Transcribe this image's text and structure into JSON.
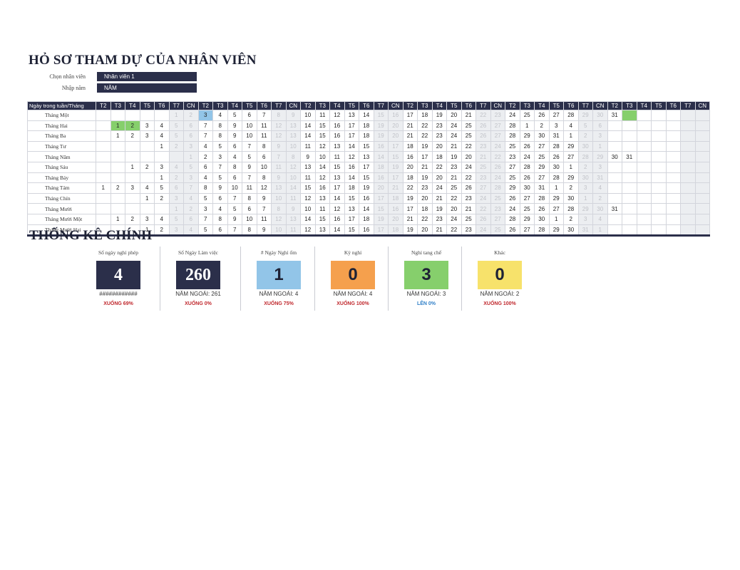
{
  "title": "HỎ SƠ THAM DỰ CỦA NHÂN VIÊN",
  "selectors": [
    {
      "label": "Chọn nhân viên",
      "value": "Nhân viên 1"
    },
    {
      "label": "Nhập năm",
      "value": "NĂM"
    }
  ],
  "grid": {
    "corner": "Ngày trong tuần/Tháng",
    "weekdays": [
      "T2",
      "T3",
      "T4",
      "T5",
      "T6",
      "T7",
      "CN",
      "T2",
      "T3",
      "T4",
      "T5",
      "T6",
      "T7",
      "CN",
      "T2",
      "T3",
      "T4",
      "T5",
      "T6",
      "T7",
      "CN",
      "T2",
      "T3",
      "T4",
      "T5",
      "T6",
      "T7",
      "CN",
      "T2",
      "T3",
      "T4",
      "T5",
      "T6",
      "T7",
      "CN",
      "T2",
      "T3",
      "T4",
      "T5",
      "T6",
      "T7",
      "CN"
    ],
    "months": [
      {
        "name": "Tháng Một",
        "days": [
          "",
          "",
          "",
          "",
          "",
          "1",
          "2",
          "3",
          "4",
          "5",
          "6",
          "7",
          "8",
          "9",
          "10",
          "11",
          "12",
          "13",
          "14",
          "15",
          "16",
          "17",
          "18",
          "19",
          "20",
          "21",
          "22",
          "23",
          "24",
          "25",
          "26",
          "27",
          "28",
          "29",
          "30",
          "31",
          "",
          "",
          "",
          "",
          "",
          ""
        ],
        "marks": {
          "7": "blue",
          "36": "green"
        }
      },
      {
        "name": "Tháng Hai",
        "days": [
          "",
          "1",
          "2",
          "3",
          "4",
          "5",
          "6",
          "7",
          "8",
          "9",
          "10",
          "11",
          "12",
          "13",
          "14",
          "15",
          "16",
          "17",
          "18",
          "19",
          "20",
          "21",
          "22",
          "23",
          "24",
          "25",
          "26",
          "27",
          "28",
          "1",
          "2",
          "3",
          "4",
          "5",
          "6",
          "",
          "",
          "",
          "",
          "",
          "",
          ""
        ],
        "marks": {
          "1": "green",
          "2": "green"
        }
      },
      {
        "name": "Tháng Ba",
        "days": [
          "",
          "1",
          "2",
          "3",
          "4",
          "5",
          "6",
          "7",
          "8",
          "9",
          "10",
          "11",
          "12",
          "13",
          "14",
          "15",
          "16",
          "17",
          "18",
          "19",
          "20",
          "21",
          "22",
          "23",
          "24",
          "25",
          "26",
          "27",
          "28",
          "29",
          "30",
          "31",
          "1",
          "2",
          "3",
          "",
          "",
          "",
          "",
          "",
          "",
          ""
        ]
      },
      {
        "name": "Tháng Tư",
        "days": [
          "",
          "",
          "",
          "",
          "1",
          "2",
          "3",
          "4",
          "5",
          "6",
          "7",
          "8",
          "9",
          "10",
          "11",
          "12",
          "13",
          "14",
          "15",
          "16",
          "17",
          "18",
          "19",
          "20",
          "21",
          "22",
          "23",
          "24",
          "25",
          "26",
          "27",
          "28",
          "29",
          "30",
          "1",
          "",
          "",
          "",
          "",
          "",
          "",
          ""
        ]
      },
      {
        "name": "Tháng Năm",
        "days": [
          "",
          "",
          "",
          "",
          "",
          "",
          "1",
          "2",
          "3",
          "4",
          "5",
          "6",
          "7",
          "8",
          "9",
          "10",
          "11",
          "12",
          "13",
          "14",
          "15",
          "16",
          "17",
          "18",
          "19",
          "20",
          "21",
          "22",
          "23",
          "24",
          "25",
          "26",
          "27",
          "28",
          "29",
          "30",
          "31",
          "",
          "",
          "",
          "",
          ""
        ]
      },
      {
        "name": "Tháng Sáu",
        "days": [
          "",
          "",
          "1",
          "2",
          "3",
          "4",
          "5",
          "6",
          "7",
          "8",
          "9",
          "10",
          "11",
          "12",
          "13",
          "14",
          "15",
          "16",
          "17",
          "18",
          "19",
          "20",
          "21",
          "22",
          "23",
          "24",
          "25",
          "26",
          "27",
          "28",
          "29",
          "30",
          "1",
          "2",
          "3",
          "",
          "",
          "",
          "",
          "",
          "",
          ""
        ]
      },
      {
        "name": "Tháng Bảy",
        "days": [
          "",
          "",
          "",
          "",
          "1",
          "2",
          "3",
          "4",
          "5",
          "6",
          "7",
          "8",
          "9",
          "10",
          "11",
          "12",
          "13",
          "14",
          "15",
          "16",
          "17",
          "18",
          "19",
          "20",
          "21",
          "22",
          "23",
          "24",
          "25",
          "26",
          "27",
          "28",
          "29",
          "30",
          "31",
          "",
          "",
          "",
          "",
          "",
          "",
          ""
        ]
      },
      {
        "name": "Tháng Tám",
        "days": [
          "1",
          "2",
          "3",
          "4",
          "5",
          "6",
          "7",
          "8",
          "9",
          "10",
          "11",
          "12",
          "13",
          "14",
          "15",
          "16",
          "17",
          "18",
          "19",
          "20",
          "21",
          "22",
          "23",
          "24",
          "25",
          "26",
          "27",
          "28",
          "29",
          "30",
          "31",
          "1",
          "2",
          "3",
          "4",
          "",
          "",
          "",
          "",
          "",
          "",
          ""
        ]
      },
      {
        "name": "Tháng Chín",
        "days": [
          "",
          "",
          "",
          "1",
          "2",
          "3",
          "4",
          "5",
          "6",
          "7",
          "8",
          "9",
          "10",
          "11",
          "12",
          "13",
          "14",
          "15",
          "16",
          "17",
          "18",
          "19",
          "20",
          "21",
          "22",
          "23",
          "24",
          "25",
          "26",
          "27",
          "28",
          "29",
          "30",
          "1",
          "2",
          "",
          "",
          "",
          "",
          "",
          "",
          ""
        ]
      },
      {
        "name": "Tháng Mười",
        "days": [
          "",
          "",
          "",
          "",
          "",
          "1",
          "2",
          "3",
          "4",
          "5",
          "6",
          "7",
          "8",
          "9",
          "10",
          "11",
          "12",
          "13",
          "14",
          "15",
          "16",
          "17",
          "18",
          "19",
          "20",
          "21",
          "22",
          "23",
          "24",
          "25",
          "26",
          "27",
          "28",
          "29",
          "30",
          "31",
          "",
          "",
          "",
          "",
          "",
          ""
        ]
      },
      {
        "name": "Tháng Mười Một",
        "days": [
          "",
          "1",
          "2",
          "3",
          "4",
          "5",
          "6",
          "7",
          "8",
          "9",
          "10",
          "11",
          "12",
          "13",
          "14",
          "15",
          "16",
          "17",
          "18",
          "19",
          "20",
          "21",
          "22",
          "23",
          "24",
          "25",
          "26",
          "27",
          "28",
          "29",
          "30",
          "1",
          "2",
          "3",
          "4",
          "",
          "",
          "",
          "",
          "",
          "",
          ""
        ]
      },
      {
        "name": "Tháng Mười Hai",
        "days": [
          "",
          "",
          "",
          "1",
          "2",
          "3",
          "4",
          "5",
          "6",
          "7",
          "8",
          "9",
          "10",
          "11",
          "12",
          "13",
          "14",
          "15",
          "16",
          "17",
          "18",
          "19",
          "20",
          "21",
          "22",
          "23",
          "24",
          "25",
          "26",
          "27",
          "28",
          "29",
          "30",
          "31",
          "1",
          "",
          "",
          "",
          "",
          "",
          "",
          ""
        ]
      }
    ],
    "colors": {
      "header": "#2b2f4a",
      "weekend_bg": "#eceef1",
      "weekend_text": "#c0c2c8",
      "mark_blue": "#92c5e8",
      "mark_green": "#86cf6c"
    }
  },
  "stats": {
    "title": "THỐNG KÊ CHÍNH",
    "cards": [
      {
        "label": "Số ngày nghỉ phép",
        "value": "4",
        "prev": "############",
        "change": "XUỐNG 69%",
        "bg": "#2b2f4a",
        "fg": "#ffffff",
        "change_color": "#c0282d"
      },
      {
        "label": "Số Ngày Làm việc",
        "value": "260",
        "prev": "NĂM NGOÁI: 261",
        "change": "XUỐNG 0%",
        "bg": "#2b2f4a",
        "fg": "#ffffff",
        "change_color": "#c0282d"
      },
      {
        "label": "# Ngày Nghỉ ốm",
        "value": "1",
        "prev": "NĂM NGOÁI: 4",
        "change": "XUỐNG 75%",
        "bg": "#92c5e8",
        "fg": "#1e2235",
        "change_color": "#c0282d"
      },
      {
        "label": "Kỳ nghỉ",
        "value": "0",
        "prev": "NĂM NGOÁI: 4",
        "change": "XUỐNG 100%",
        "bg": "#f5a04d",
        "fg": "#1e2235",
        "change_color": "#c0282d"
      },
      {
        "label": "Nghỉ tang chế",
        "value": "3",
        "prev": "NĂM NGOÁI: 3",
        "change": "LÊN 0%",
        "bg": "#86cf6c",
        "fg": "#1e2235",
        "change_color": "#2f7fc7"
      },
      {
        "label": "Khác",
        "value": "0",
        "prev": "NĂM NGOÁI: 2",
        "change": "XUỐNG 100%",
        "bg": "#f7e26b",
        "fg": "#1e2235",
        "change_color": "#c0282d"
      }
    ]
  }
}
